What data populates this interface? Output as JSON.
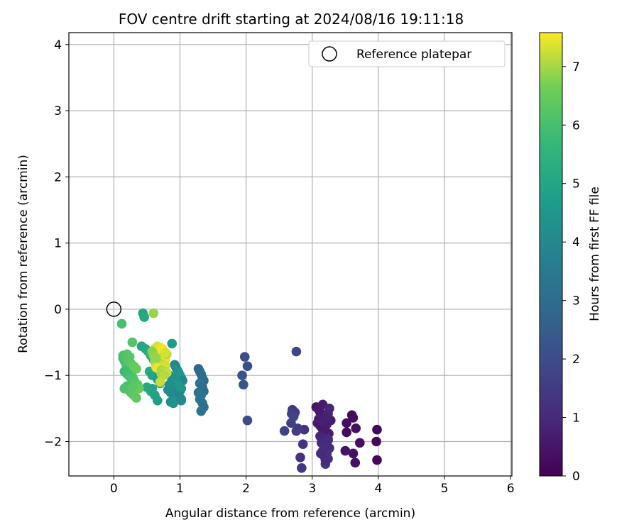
{
  "chart_data": {
    "type": "scatter",
    "title": "FOV centre drift starting at 2024/08/16 19:11:18",
    "xlabel": "Angular distance from reference (arcmin)",
    "ylabel": "Rotation from reference (arcmin)",
    "xlim": [
      -0.68,
      6.02
    ],
    "ylim": [
      -2.52,
      4.18
    ],
    "xticks": [
      "0",
      "1",
      "2",
      "3",
      "4",
      "5",
      "6"
    ],
    "yticks": [
      "−2",
      "−1",
      "0",
      "1",
      "2",
      "3",
      "4"
    ],
    "grid": true,
    "legend": {
      "position": "top-right",
      "entries": [
        "Reference platepar"
      ]
    },
    "colorbar": {
      "label": "Hours from first FF file",
      "colormap": "viridis",
      "range": [
        0,
        7.58
      ],
      "ticks": [
        "0",
        "1",
        "2",
        "3",
        "4",
        "5",
        "6",
        "7"
      ]
    },
    "reference_point": {
      "name": "Reference platepar",
      "x": 0,
      "y": 0
    },
    "series": [
      {
        "x": [
          3.06,
          3.1,
          3.12,
          3.14,
          3.16,
          3.18,
          3.2,
          3.22,
          3.24,
          3.26,
          3.08,
          3.12,
          3.18,
          3.22,
          3.28,
          3.15,
          3.2,
          3.25,
          3.1,
          3.16,
          3.22,
          3.12,
          3.18,
          3.24,
          3.14,
          3.2,
          3.26,
          3.16,
          3.22,
          3.18,
          3.24,
          3.2,
          3.6,
          3.62,
          3.66,
          3.52,
          3.52,
          3.98,
          3.97,
          3.98,
          3.72,
          3.62,
          3.65,
          3.5,
          3.13,
          3.2,
          3.24,
          3.18,
          2.82,
          2.86,
          2.88,
          2.84,
          2.7,
          2.74,
          2.76,
          2.78,
          2.69,
          2.68,
          2.58,
          2.72
        ],
        "y": [
          -1.48,
          -1.52,
          -1.56,
          -1.58,
          -1.44,
          -1.62,
          -1.66,
          -1.7,
          -1.58,
          -1.5,
          -1.72,
          -1.76,
          -1.78,
          -1.74,
          -1.68,
          -1.8,
          -1.84,
          -1.88,
          -1.66,
          -1.7,
          -1.62,
          -1.92,
          -1.96,
          -1.98,
          -2.02,
          -2.06,
          -2.1,
          -2.14,
          -2.18,
          -2.22,
          -2.26,
          -2.34,
          -1.6,
          -1.64,
          -1.8,
          -1.72,
          -1.86,
          -1.82,
          -2.0,
          -2.28,
          -2.02,
          -2.18,
          -2.32,
          -2.14,
          -2.18,
          -2.28,
          -1.96,
          -2.08,
          -2.24,
          -2.04,
          -1.82,
          -2.4,
          -1.52,
          -1.56,
          -1.84,
          -1.8,
          -1.58,
          -1.72,
          -1.84,
          -1.62
        ],
        "hours": [
          0.45,
          0.5,
          0.55,
          0.6,
          0.65,
          0.7,
          0.75,
          0.8,
          0.85,
          0.9,
          0.5,
          0.55,
          0.6,
          0.65,
          0.7,
          0.55,
          0.6,
          0.65,
          0.7,
          0.75,
          0.8,
          0.85,
          0.9,
          0.95,
          1.0,
          1.05,
          1.1,
          1.15,
          1.2,
          1.25,
          1.3,
          1.35,
          0.3,
          0.28,
          0.32,
          0.25,
          0.22,
          0.15,
          0.18,
          0.12,
          0.35,
          0.38,
          0.4,
          0.42,
          1.0,
          1.05,
          1.1,
          1.12,
          1.2,
          1.25,
          1.3,
          1.35,
          1.4,
          1.45,
          1.5,
          1.55,
          1.6,
          1.65,
          1.7,
          1.75
        ]
      },
      {
        "x": [
          2.76,
          1.98,
          2.02,
          1.94,
          1.96,
          2.02
        ],
        "y": [
          -0.64,
          -0.72,
          -0.86,
          -1.0,
          -1.14,
          -1.68
        ],
        "hours": [
          1.8,
          2.0,
          2.1,
          2.2,
          2.3,
          1.9
        ]
      },
      {
        "x": [
          1.28,
          1.3,
          1.32,
          1.34,
          1.36,
          1.3,
          1.34,
          1.36,
          1.28,
          1.32,
          1.3,
          1.34,
          1.36,
          1.32
        ],
        "y": [
          -0.9,
          -0.94,
          -0.98,
          -1.04,
          -1.08,
          -1.12,
          -1.18,
          -1.24,
          -1.26,
          -1.3,
          -1.36,
          -1.42,
          -1.48,
          -1.54
        ],
        "hours": [
          2.8,
          2.9,
          3.0,
          3.1,
          3.0,
          3.2,
          3.1,
          3.0,
          3.2,
          3.3,
          3.3,
          3.2,
          3.1,
          3.2
        ]
      },
      {
        "x": [
          0.88,
          0.92,
          0.94,
          0.96,
          0.98,
          1.0,
          1.02,
          1.04,
          0.9,
          0.94,
          0.98,
          1.02,
          0.96,
          1.0,
          0.92,
          0.96,
          0.98,
          1.02,
          0.86,
          0.9,
          0.94,
          0.98,
          1.02,
          0.84,
          0.88,
          0.92,
          0.96,
          1.0,
          0.82,
          0.86,
          0.8,
          0.84
        ],
        "y": [
          -0.52,
          -0.84,
          -0.88,
          -0.92,
          -0.96,
          -1.0,
          -1.04,
          -1.08,
          -1.1,
          -1.14,
          -1.16,
          -1.2,
          -1.22,
          -1.24,
          -1.26,
          -1.3,
          -1.34,
          -1.38,
          -1.4,
          -1.42,
          -1.32,
          -1.28,
          -1.36,
          -1.0,
          -1.04,
          -1.08,
          -1.12,
          -1.18,
          -1.22,
          -1.26,
          -0.98,
          -1.14
        ],
        "hours": [
          4.6,
          4.0,
          4.1,
          4.2,
          4.3,
          4.4,
          4.5,
          3.9,
          4.0,
          4.1,
          4.2,
          4.3,
          4.4,
          4.5,
          3.8,
          3.9,
          4.0,
          4.1,
          4.2,
          4.3,
          4.4,
          3.8,
          4.0,
          4.1,
          4.2,
          4.3,
          4.4,
          4.5,
          4.0,
          4.1,
          4.3,
          4.2
        ]
      },
      {
        "x": [
          0.44,
          0.46,
          0.42,
          0.48,
          0.52,
          0.56,
          0.6,
          0.64,
          0.68,
          0.54,
          0.58,
          0.66,
          0.7,
          0.5,
          0.56,
          0.62,
          0.58,
          0.66
        ],
        "y": [
          -0.06,
          -0.12,
          -0.56,
          -0.6,
          -0.64,
          -0.7,
          -0.76,
          -0.82,
          -0.88,
          -0.94,
          -1.0,
          -1.06,
          -1.12,
          -1.18,
          -1.24,
          -1.3,
          -1.2,
          -1.38
        ],
        "hours": [
          5.0,
          5.1,
          5.0,
          5.1,
          5.2,
          5.3,
          5.0,
          4.9,
          5.1,
          5.2,
          5.0,
          4.8,
          5.0,
          5.1,
          5.2,
          4.9,
          5.0,
          4.8
        ]
      },
      {
        "x": [
          0.12,
          0.14,
          0.16,
          0.18,
          0.2,
          0.22,
          0.24,
          0.26,
          0.28,
          0.3,
          0.32,
          0.34,
          0.14,
          0.18,
          0.22,
          0.26,
          0.3,
          0.34,
          0.16,
          0.2,
          0.24,
          0.28,
          0.32,
          0.36,
          0.18,
          0.22,
          0.26,
          0.3,
          0.34,
          0.38,
          0.28,
          0.24,
          0.2,
          0.16,
          0.3,
          0.32,
          0.2,
          0.28
        ],
        "y": [
          -0.22,
          -0.74,
          -0.78,
          -0.82,
          -0.86,
          -0.9,
          -0.94,
          -0.98,
          -1.02,
          -1.06,
          -1.1,
          -1.14,
          -0.7,
          -0.74,
          -0.78,
          -0.82,
          -0.86,
          -0.9,
          -0.94,
          -0.98,
          -1.02,
          -1.06,
          -1.1,
          -1.14,
          -1.18,
          -1.22,
          -1.26,
          -1.3,
          -1.34,
          -1.2,
          -0.5,
          -0.72,
          -1.16,
          -1.2,
          -0.86,
          -0.88,
          -0.68,
          -1.18
        ],
        "hours": [
          6.0,
          5.8,
          5.9,
          6.0,
          6.1,
          5.8,
          5.9,
          6.0,
          6.1,
          6.2,
          5.7,
          5.8,
          6.0,
          6.1,
          6.2,
          6.3,
          6.4,
          6.5,
          5.8,
          5.9,
          6.0,
          6.1,
          6.2,
          6.3,
          6.0,
          6.1,
          6.2,
          6.3,
          6.4,
          6.5,
          6.2,
          6.3,
          6.0,
          6.1,
          6.4,
          6.5,
          6.2,
          6.3
        ]
      },
      {
        "x": [
          0.6,
          0.62,
          0.64,
          0.66,
          0.68,
          0.7,
          0.72,
          0.74,
          0.76,
          0.78,
          0.8,
          0.62,
          0.66,
          0.7,
          0.74,
          0.78,
          0.64,
          0.68,
          0.72,
          0.76,
          0.8,
          0.66,
          0.7,
          0.74,
          0.6,
          0.64,
          0.72,
          0.76,
          0.7,
          0.78,
          0.58,
          0.62
        ],
        "y": [
          -0.06,
          -0.6,
          -0.62,
          -0.64,
          -0.66,
          -0.68,
          -0.7,
          -0.72,
          -0.74,
          -0.76,
          -0.68,
          -0.78,
          -0.8,
          -0.82,
          -0.84,
          -0.86,
          -0.88,
          -0.9,
          -0.92,
          -0.94,
          -0.96,
          -0.56,
          -0.58,
          -0.6,
          -0.7,
          -0.74,
          -0.98,
          -1.0,
          -1.1,
          -0.66,
          -0.64,
          -0.72
        ],
        "hours": [
          6.9,
          7.0,
          7.1,
          7.2,
          7.3,
          7.4,
          7.5,
          7.2,
          7.3,
          7.4,
          7.1,
          6.9,
          7.0,
          7.1,
          7.2,
          7.3,
          7.4,
          7.5,
          7.0,
          7.1,
          7.2,
          7.3,
          7.4,
          7.5,
          6.8,
          6.9,
          7.0,
          7.1,
          7.2,
          7.3,
          6.8,
          6.9
        ]
      }
    ]
  }
}
